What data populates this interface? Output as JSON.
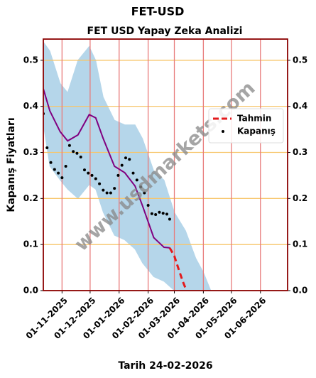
{
  "chart_data": {
    "type": "line",
    "title": "FET-USD",
    "subtitle": "FET USD Yapay Zeka Analizi",
    "ylabel": "Kapanış Fiyatları",
    "xlabel": "Tarih 24-02-2026",
    "watermark": "www.usdmarkets.com",
    "xlim": [
      "2025-10-12",
      "2026-06-30"
    ],
    "xticks": [
      {
        "value": "2025-11-01",
        "label": "01-11-2025"
      },
      {
        "value": "2025-12-01",
        "label": "01-12-2025"
      },
      {
        "value": "2026-01-01",
        "label": "01-01-2026"
      },
      {
        "value": "2026-02-01",
        "label": "01-02-2026"
      },
      {
        "value": "2026-03-01",
        "label": "01-03-2026"
      },
      {
        "value": "2026-04-01",
        "label": "01-04-2026"
      },
      {
        "value": "2026-05-01",
        "label": "01-05-2026"
      },
      {
        "value": "2026-06-01",
        "label": "01-06-2026"
      }
    ],
    "ylim": [
      0,
      0.546
    ],
    "yticks": [
      {
        "value": 0,
        "label": "0.0"
      },
      0.1,
      0.2,
      0.3,
      0.4,
      0.5
    ],
    "grid": true,
    "xgrid_color": "#e87a7a",
    "ygrid_color": "#f7c56a",
    "frame_color": "#8b0000",
    "legend": "center right",
    "band": {
      "color": "#b5d6ea",
      "x": [
        "2025-10-12",
        "2025-10-19",
        "2025-10-30",
        "2025-11-07",
        "2025-11-18",
        "2025-11-30",
        "2025-12-07",
        "2025-12-15",
        "2025-12-27",
        "2026-01-07",
        "2026-01-18",
        "2026-01-26",
        "2026-02-07",
        "2026-02-18",
        "2026-03-01",
        "2026-03-13",
        "2026-03-24",
        "2026-04-01",
        "2026-04-09"
      ],
      "upper": [
        0.54,
        0.52,
        0.45,
        0.43,
        0.5,
        0.53,
        0.5,
        0.42,
        0.37,
        0.36,
        0.36,
        0.33,
        0.26,
        0.24,
        0.17,
        0.13,
        0.07,
        0.04,
        0
      ],
      "lower": [
        0.36,
        0.27,
        0.24,
        0.22,
        0.2,
        0.23,
        0.22,
        0.17,
        0.12,
        0.11,
        0.09,
        0.06,
        0.03,
        0.02,
        0,
        0,
        0,
        0,
        0
      ]
    },
    "series": [
      {
        "name": "Tahmin",
        "color": "#e31a1c",
        "kind": "dashed",
        "x": [
          "2026-02-24",
          "2026-03-01",
          "2026-03-05",
          "2026-03-10",
          "2026-03-14"
        ],
        "values": [
          0.093,
          0.075,
          0.05,
          0.02,
          0
        ]
      },
      {
        "name": "Kapanış",
        "color": "#000000",
        "kind": "dots",
        "x": [
          "2025-10-12",
          "2025-10-16",
          "2025-10-20",
          "2025-10-24",
          "2025-10-28",
          "2025-11-01",
          "2025-11-05",
          "2025-11-09",
          "2025-11-13",
          "2025-11-17",
          "2025-11-21",
          "2025-11-25",
          "2025-11-29",
          "2025-12-03",
          "2025-12-07",
          "2025-12-11",
          "2025-12-15",
          "2025-12-19",
          "2025-12-23",
          "2025-12-27",
          "2025-12-31",
          "2026-01-04",
          "2026-01-08",
          "2026-01-12",
          "2026-01-16",
          "2026-01-20",
          "2026-01-24",
          "2026-01-28",
          "2026-02-01",
          "2026-02-05",
          "2026-02-09",
          "2026-02-13",
          "2026-02-17",
          "2026-02-21",
          "2026-02-24"
        ],
        "values": [
          0.384,
          0.31,
          0.278,
          0.263,
          0.255,
          0.245,
          0.27,
          0.315,
          0.302,
          0.298,
          0.29,
          0.262,
          0.255,
          0.25,
          0.243,
          0.232,
          0.218,
          0.212,
          0.212,
          0.222,
          0.25,
          0.272,
          0.288,
          0.285,
          0.255,
          0.24,
          0.225,
          0.212,
          0.185,
          0.167,
          0.165,
          0.17,
          0.168,
          0.166,
          0.155
        ]
      },
      {
        "color": "#800080",
        "kind": "solid",
        "x": [
          "2025-10-12",
          "2025-10-19",
          "2025-10-30",
          "2025-11-07",
          "2025-11-18",
          "2025-11-30",
          "2025-12-07",
          "2025-12-15",
          "2025-12-27",
          "2026-01-07",
          "2026-01-18",
          "2026-01-26",
          "2026-02-07",
          "2026-02-18",
          "2026-02-24"
        ],
        "values": [
          0.438,
          0.39,
          0.345,
          0.325,
          0.338,
          0.382,
          0.375,
          0.33,
          0.27,
          0.256,
          0.227,
          0.184,
          0.115,
          0.094,
          0.093
        ]
      }
    ]
  }
}
